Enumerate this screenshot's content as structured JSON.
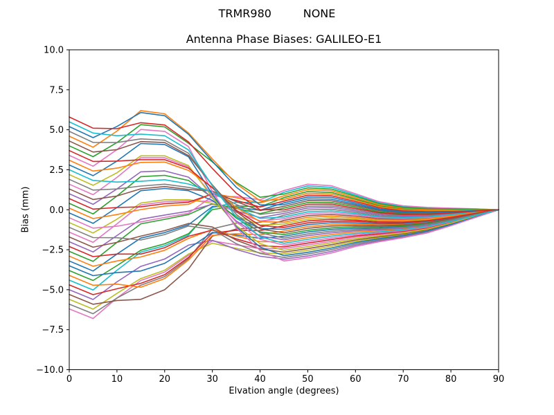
{
  "chart_data": {
    "type": "line",
    "suptitle": "TRMR980         NONE",
    "title": "Antenna Phase Biases: GALILEO-E1",
    "xlabel": "Elvation angle (degrees)",
    "ylabel": "Bias (mm)",
    "xlim": [
      0,
      90
    ],
    "ylim": [
      -10,
      10
    ],
    "grid": false,
    "legend": "none",
    "linewidth": 1.6,
    "axis_color": "#000000",
    "background_color": "#ffffff",
    "xticks": {
      "values": [
        0,
        10,
        20,
        30,
        40,
        50,
        60,
        70,
        80,
        90
      ],
      "labels": [
        "0",
        "10",
        "20",
        "30",
        "40",
        "50",
        "60",
        "70",
        "80",
        "90"
      ]
    },
    "yticks": {
      "values": [
        -10,
        -7.5,
        -5,
        -2.5,
        0,
        2.5,
        5,
        7.5,
        10
      ],
      "labels": [
        "−10.0",
        "−7.5",
        "−5.0",
        "−2.5",
        "0.0",
        "2.5",
        "5.0",
        "7.5",
        "10.0"
      ]
    },
    "x": [
      0,
      5,
      10,
      15,
      20,
      25,
      30,
      35,
      40,
      45,
      50,
      55,
      60,
      65,
      70,
      75,
      80,
      85,
      90
    ],
    "series": [
      {
        "color": "#e377c2",
        "values": [
          -6.2,
          -6.8,
          -5.52,
          -4.42,
          -3.9,
          -2.85,
          -1.95,
          -2.19,
          -2.43,
          -2.43,
          -2.2,
          -1.97,
          -1.72,
          -1.56,
          -1.4,
          -1.17,
          -0.81,
          -0.4,
          0
        ]
      },
      {
        "color": "#7f7f7f",
        "values": [
          -5.9,
          -6.5,
          -5.52,
          -4.72,
          -4.18,
          -3.06,
          -1.19,
          -0.84,
          -0.79,
          -0.34,
          -0.01,
          0.03,
          -0.16,
          -0.38,
          -0.45,
          -0.41,
          -0.29,
          -0.14,
          0
        ]
      },
      {
        "color": "#bcbd22",
        "values": [
          -5.6,
          -6.21,
          -5.23,
          -4.3,
          -3.78,
          -2.77,
          -2.09,
          -2.41,
          -2.69,
          -2.76,
          -2.54,
          -2.28,
          -1.97,
          -1.75,
          -1.55,
          -1.29,
          -0.89,
          -0.44,
          0
        ]
      },
      {
        "color": "#8c564b",
        "values": [
          -5.3,
          -5.91,
          -5.67,
          -5.6,
          -5.0,
          -3.7,
          -1.65,
          -1.21,
          -1.1,
          -0.67,
          -0.36,
          -0.29,
          -0.4,
          -0.56,
          -0.6,
          -0.53,
          -0.37,
          -0.18,
          0
        ]
      },
      {
        "color": "#9467bd",
        "values": [
          -5.0,
          -5.61,
          -4.51,
          -3.54,
          -3.08,
          -2.21,
          -1.91,
          -2.48,
          -2.91,
          -3.09,
          -2.89,
          -2.6,
          -2.22,
          -1.94,
          -1.7,
          -1.41,
          -0.97,
          -0.49,
          0
        ]
      },
      {
        "color": "#d62728",
        "values": [
          -4.7,
          -5.31,
          -4.94,
          -4.6,
          -4.06,
          -2.98,
          -1.46,
          -1.28,
          -1.31,
          -1.0,
          -0.7,
          -0.6,
          -0.65,
          -0.75,
          -0.75,
          -0.65,
          -0.45,
          -0.22,
          0
        ]
      },
      {
        "color": "#17becf",
        "values": [
          -4.4,
          -5.02,
          -3.78,
          -2.65,
          -2.25,
          -1.58,
          0.15,
          0.46,
          0.45,
          1.09,
          1.49,
          1.4,
          0.92,
          0.44,
          0.2,
          0.11,
          0.07,
          0.05,
          0
        ]
      },
      {
        "color": "#ff7f0e",
        "values": [
          -4.1,
          -4.72,
          -4.65,
          -4.84,
          -4.3,
          -3.14,
          -1.6,
          -1.5,
          -1.57,
          -1.33,
          -1.05,
          -0.92,
          -0.9,
          -0.94,
          -0.9,
          -0.77,
          -0.53,
          -0.26,
          0
        ]
      },
      {
        "color": "#2ca02c",
        "values": [
          -3.8,
          -4.42,
          -3.49,
          -2.53,
          -2.13,
          -1.5,
          0.01,
          0.24,
          0.19,
          0.76,
          1.14,
          1.08,
          0.67,
          0.25,
          0.05,
          -0.01,
          -0.01,
          0,
          0
        ]
      },
      {
        "color": "#1f77b4",
        "values": [
          -3.5,
          -4.12,
          -3.93,
          -3.83,
          -3.35,
          -2.43,
          -1.42,
          -1.58,
          -1.79,
          -1.66,
          -1.39,
          -1.23,
          -1.15,
          -1.13,
          -1.05,
          -0.89,
          -0.62,
          -0.3,
          0
        ]
      },
      {
        "color": "#1f77b4",
        "values": [
          -3.2,
          -3.83,
          -2.77,
          -1.77,
          -1.43,
          -0.94,
          0.2,
          0.16,
          -0.03,
          0.43,
          0.8,
          0.77,
          0.42,
          0.06,
          -0.1,
          -0.13,
          -0.09,
          -0.04,
          0
        ]
      },
      {
        "color": "#ff7f0e",
        "values": [
          -2.9,
          -3.53,
          -3.2,
          -2.95,
          -2.53,
          -1.79,
          -1.24,
          -1.65,
          -2.0,
          -1.99,
          -1.74,
          -1.55,
          -1.39,
          -1.31,
          -1.2,
          -1.01,
          -0.7,
          -0.35,
          0
        ]
      },
      {
        "color": "#2ca02c",
        "values": [
          -2.6,
          -3.23,
          -2.04,
          -0.88,
          -0.6,
          -0.3,
          0.38,
          0.09,
          -0.24,
          0.1,
          0.45,
          0.45,
          0.18,
          -0.13,
          -0.25,
          -0.25,
          -0.18,
          -0.08,
          0
        ]
      },
      {
        "color": "#d62728",
        "values": [
          -2.3,
          -2.93,
          -2.77,
          -2.77,
          -2.37,
          -1.66,
          -1.27,
          -1.82,
          -2.25,
          -2.32,
          -2.08,
          -1.86,
          -1.64,
          -1.5,
          -1.35,
          -1.13,
          -0.78,
          -0.39,
          0
        ]
      },
      {
        "color": "#9467bd",
        "values": [
          -2.0,
          -2.64,
          -1.61,
          -0.59,
          -0.33,
          -0.09,
          0.35,
          -0.08,
          -0.49,
          -0.23,
          0.11,
          0.14,
          -0.07,
          -0.31,
          -0.4,
          -0.37,
          -0.26,
          -0.12,
          0
        ]
      },
      {
        "color": "#8c564b",
        "values": [
          -1.7,
          -2.34,
          -2.04,
          -1.65,
          -1.31,
          -0.86,
          -1.08,
          -1.9,
          -2.46,
          -2.65,
          -2.43,
          -2.18,
          -1.89,
          -1.69,
          -1.5,
          -1.25,
          -0.86,
          -0.43,
          0
        ]
      },
      {
        "color": "#e377c2",
        "values": [
          -1.4,
          -2.04,
          -0.88,
          0.3,
          0.5,
          0.55,
          0.53,
          -0.16,
          -0.7,
          -0.56,
          -0.24,
          -0.18,
          -0.32,
          -0.5,
          -0.55,
          -0.49,
          -0.34,
          -0.16,
          0
        ]
      },
      {
        "color": "#7f7f7f",
        "values": [
          -1.1,
          -1.74,
          -1.75,
          -1.89,
          -1.55,
          -1.02,
          -1.22,
          -2.12,
          -2.73,
          -2.98,
          -2.77,
          -2.49,
          -2.14,
          -1.88,
          -1.65,
          -1.37,
          -0.95,
          -0.47,
          0
        ]
      },
      {
        "color": "#bcbd22",
        "values": [
          -0.8,
          -1.45,
          -0.59,
          0.42,
          0.62,
          0.63,
          0.4,
          -0.38,
          -0.96,
          -0.89,
          -0.59,
          -0.5,
          -0.57,
          -0.69,
          -0.7,
          -0.61,
          -0.42,
          -0.21,
          0
        ]
      },
      {
        "color": "#e377c2",
        "values": [
          -0.5,
          -1.15,
          -1.03,
          -0.76,
          -0.48,
          -0.22,
          0.84,
          0.82,
          0.63,
          1.2,
          1.6,
          1.5,
          1.0,
          0.5,
          0.25,
          0.15,
          0.1,
          0.06,
          0
        ]
      },
      {
        "color": "#1f77b4",
        "values": [
          -0.2,
          -0.85,
          0.14,
          1.19,
          1.33,
          1.19,
          0.58,
          -0.45,
          -1.18,
          -1.22,
          -0.93,
          -0.81,
          -0.82,
          -0.88,
          -0.85,
          -0.73,
          -0.51,
          -0.25,
          0
        ]
      },
      {
        "color": "#ff7f0e",
        "values": [
          0.1,
          -0.55,
          -0.3,
          0.01,
          0.23,
          0.34,
          1.02,
          0.75,
          0.42,
          0.87,
          1.26,
          1.19,
          0.75,
          0.31,
          0.1,
          0.03,
          0.02,
          0.02,
          0
        ]
      },
      {
        "color": "#2ca02c",
        "values": [
          0.4,
          -0.26,
          0.86,
          2.07,
          2.15,
          1.83,
          0.76,
          -0.52,
          -1.39,
          -1.55,
          -1.28,
          -1.13,
          -1.06,
          -1.06,
          -1.0,
          -0.85,
          -0.59,
          -0.29,
          0
        ]
      },
      {
        "color": "#d62728",
        "values": [
          0.7,
          0.04,
          0.14,
          0.18,
          0.38,
          0.47,
          0.99,
          0.58,
          0.17,
          0.54,
          0.91,
          0.87,
          0.51,
          0.13,
          -0.05,
          -0.09,
          -0.07,
          -0.02,
          0
        ]
      },
      {
        "color": "#9467bd",
        "values": [
          1.0,
          0.34,
          1.3,
          2.37,
          2.43,
          2.04,
          0.73,
          -0.7,
          -1.64,
          -1.88,
          -1.62,
          -1.44,
          -1.31,
          -1.25,
          -1.15,
          -0.97,
          -0.67,
          -0.33,
          0
        ]
      },
      {
        "color": "#8c564b",
        "values": [
          1.3,
          0.64,
          0.86,
          1.31,
          1.45,
          1.27,
          1.17,
          0.51,
          -0.05,
          0.21,
          0.57,
          0.56,
          0.26,
          -0.06,
          -0.2,
          -0.21,
          -0.15,
          -0.07,
          0
        ]
      },
      {
        "color": "#e377c2",
        "values": [
          1.6,
          0.94,
          2.02,
          3.25,
          3.25,
          2.68,
          0.91,
          -0.77,
          -1.85,
          -2.21,
          -1.97,
          -1.76,
          -1.56,
          -1.44,
          -1.3,
          -1.09,
          -0.75,
          -0.37,
          0
        ]
      },
      {
        "color": "#7f7f7f",
        "values": [
          1.9,
          1.23,
          1.3,
          1.48,
          1.6,
          1.4,
          1.14,
          0.33,
          -0.29,
          -0.12,
          0.22,
          0.24,
          0.01,
          -0.25,
          -0.35,
          -0.33,
          -0.23,
          -0.11,
          0
        ]
      },
      {
        "color": "#bcbd22",
        "values": [
          2.2,
          1.53,
          2.31,
          3.37,
          3.37,
          2.76,
          0.78,
          -0.99,
          -2.12,
          -2.54,
          -2.31,
          -2.07,
          -1.81,
          -1.63,
          -1.45,
          -1.21,
          -0.84,
          -0.42,
          0
        ]
      },
      {
        "color": "#17becf",
        "values": [
          2.5,
          1.83,
          1.73,
          1.78,
          1.88,
          1.61,
          1.11,
          0.16,
          -0.54,
          -0.45,
          -0.13,
          -0.08,
          -0.24,
          -0.44,
          -0.5,
          -0.45,
          -0.31,
          -0.15,
          0
        ]
      },
      {
        "color": "#1f77b4",
        "values": [
          2.8,
          2.13,
          3.04,
          4.14,
          4.08,
          3.31,
          0.96,
          -1.06,
          -2.33,
          -2.87,
          -2.66,
          -2.39,
          -2.05,
          -1.81,
          -1.6,
          -1.33,
          -0.92,
          -0.46,
          0
        ]
      },
      {
        "color": "#ff7f0e",
        "values": [
          3.1,
          2.42,
          2.6,
          2.96,
          2.98,
          2.46,
          1.4,
          0.14,
          -0.74,
          -0.78,
          -0.47,
          -0.39,
          -0.49,
          -0.63,
          -0.65,
          -0.57,
          -0.4,
          -0.19,
          0
        ]
      },
      {
        "color": "#e377c2",
        "values": [
          3.4,
          2.72,
          3.76,
          5.02,
          4.9,
          3.95,
          1.14,
          -1.14,
          -2.55,
          -3.2,
          -3.0,
          -2.7,
          -2.3,
          -2.0,
          -1.75,
          -1.45,
          -1.0,
          -0.5,
          0
        ]
      },
      {
        "color": "#d62728",
        "values": [
          3.7,
          3.02,
          3.04,
          3.13,
          3.13,
          2.6,
          1.37,
          -0.03,
          -0.98,
          -1.11,
          -0.82,
          -0.71,
          -0.73,
          -0.81,
          -0.8,
          -0.69,
          -0.48,
          -0.23,
          0
        ]
      },
      {
        "color": "#2ca02c",
        "values": [
          4.0,
          3.32,
          4.2,
          5.32,
          5.18,
          4.16,
          2.99,
          1.71,
          0.78,
          0.98,
          1.37,
          1.29,
          0.84,
          0.38,
          0.15,
          0.07,
          0.05,
          0.03,
          0
        ]
      },
      {
        "color": "#8c564b",
        "values": [
          4.3,
          3.61,
          3.76,
          4.26,
          4.2,
          3.39,
          1.55,
          -0.11,
          -1.2,
          -1.44,
          -1.16,
          -1.02,
          -0.98,
          -1.0,
          -0.95,
          -0.81,
          -0.56,
          -0.28,
          0
        ]
      },
      {
        "color": "#ff7f0e",
        "values": [
          4.6,
          3.91,
          4.92,
          6.2,
          6.0,
          4.8,
          3.17,
          1.63,
          0.56,
          0.65,
          1.03,
          0.98,
          0.59,
          0.19,
          0.0,
          -0.05,
          -0.04,
          -0.01,
          0
        ]
      },
      {
        "color": "#7f7f7f",
        "values": [
          4.9,
          4.21,
          4.2,
          4.43,
          4.35,
          3.53,
          1.52,
          -0.28,
          -1.44,
          -1.77,
          -1.51,
          -1.34,
          -1.23,
          -1.19,
          -1.1,
          -0.93,
          -0.64,
          -0.32,
          0
        ]
      },
      {
        "color": "#1f77b4",
        "values": [
          5.2,
          4.51,
          5.21,
          6.08,
          5.88,
          4.72,
          3.03,
          1.41,
          0.3,
          0.32,
          0.68,
          0.66,
          0.34,
          0.0,
          -0.15,
          -0.17,
          -0.12,
          -0.05,
          0
        ]
      },
      {
        "color": "#17becf",
        "values": [
          5.5,
          4.8,
          4.63,
          4.73,
          4.63,
          3.74,
          1.49,
          -0.45,
          -1.69,
          -2.1,
          -1.85,
          -1.65,
          -1.48,
          -1.38,
          -1.25,
          -1.05,
          -0.73,
          -0.36,
          0
        ]
      },
      {
        "color": "#d62728",
        "values": [
          5.8,
          5.1,
          5.07,
          5.44,
          5.3,
          4.24,
          2.58,
          1.04,
          0.0,
          -0.01,
          0.34,
          0.35,
          0.09,
          -0.19,
          -0.3,
          -0.29,
          -0.2,
          -0.09,
          0
        ]
      }
    ]
  }
}
